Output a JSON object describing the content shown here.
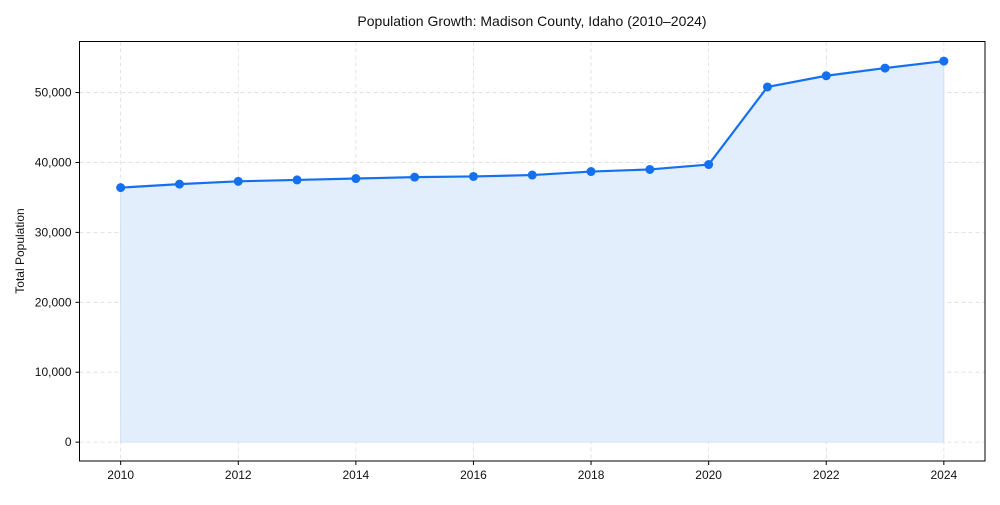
{
  "chart_data": {
    "type": "line",
    "title": "Population Growth: Madison County, Idaho (2010–2024)",
    "xlabel": "",
    "ylabel": "Total Population",
    "x": [
      2010,
      2011,
      2012,
      2013,
      2014,
      2015,
      2016,
      2017,
      2018,
      2019,
      2020,
      2021,
      2022,
      2023,
      2024
    ],
    "series": [
      {
        "name": "Total Population",
        "values": [
          36400,
          36900,
          37300,
          37500,
          37700,
          37900,
          38000,
          38200,
          38700,
          39000,
          39700,
          50800,
          52400,
          53500,
          54500
        ],
        "color": "#1570ef",
        "fill": "#e3eefd",
        "marker": "circle"
      }
    ],
    "xticks": [
      2010,
      2012,
      2014,
      2016,
      2018,
      2020,
      2022,
      2024
    ],
    "xtick_labels": [
      "2010",
      "2012",
      "2014",
      "2016",
      "2018",
      "2020",
      "2022",
      "2024"
    ],
    "yticks": [
      0,
      10000,
      20000,
      30000,
      40000,
      50000
    ],
    "ytick_labels": [
      "0",
      "10,000",
      "20,000",
      "30,000",
      "40,000",
      "50,000"
    ],
    "xlim": [
      2009.3,
      2024.7
    ],
    "ylim": [
      -2700,
      57300
    ],
    "grid": true,
    "legend": null
  }
}
